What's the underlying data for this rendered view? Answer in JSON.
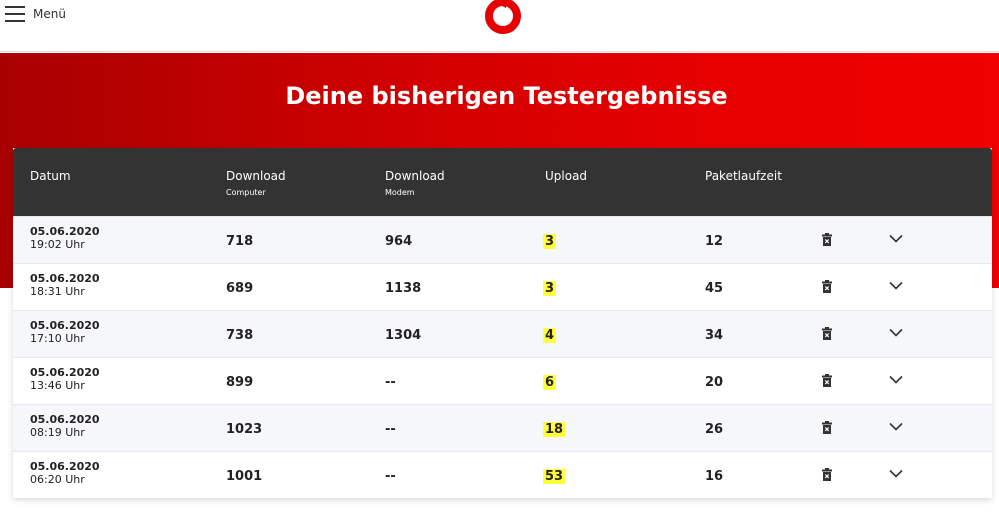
{
  "header": {
    "menu_label": "Menü",
    "logo": "vodafone-logo"
  },
  "title": "Deine bisherigen Testergebnisse",
  "table": {
    "columns": [
      {
        "label": "Datum",
        "sub": ""
      },
      {
        "label": "Download",
        "sub": "Computer"
      },
      {
        "label": "Download",
        "sub": "Modem"
      },
      {
        "label": "Upload",
        "sub": ""
      },
      {
        "label": "Paketlaufzeit",
        "sub": ""
      }
    ],
    "rows": [
      {
        "date": "05.06.2020",
        "time": "19:02 Uhr",
        "dl_computer": "718",
        "dl_modem": "964",
        "upload": "3",
        "latency": "12"
      },
      {
        "date": "05.06.2020",
        "time": "18:31 Uhr",
        "dl_computer": "689",
        "dl_modem": "1138",
        "upload": "3",
        "latency": "45"
      },
      {
        "date": "05.06.2020",
        "time": "17:10 Uhr",
        "dl_computer": "738",
        "dl_modem": "1304",
        "upload": "4",
        "latency": "34"
      },
      {
        "date": "05.06.2020",
        "time": "13:46 Uhr",
        "dl_computer": "899",
        "dl_modem": "--",
        "upload": "6",
        "latency": "20"
      },
      {
        "date": "05.06.2020",
        "time": "08:19 Uhr",
        "dl_computer": "1023",
        "dl_modem": "--",
        "upload": "18",
        "latency": "26"
      },
      {
        "date": "05.06.2020",
        "time": "06:20 Uhr",
        "dl_computer": "1001",
        "dl_modem": "--",
        "upload": "53",
        "latency": "16"
      }
    ]
  },
  "colors": {
    "brand": "#e60000",
    "header_bg": "#333333",
    "highlight": "#ffff3a"
  }
}
